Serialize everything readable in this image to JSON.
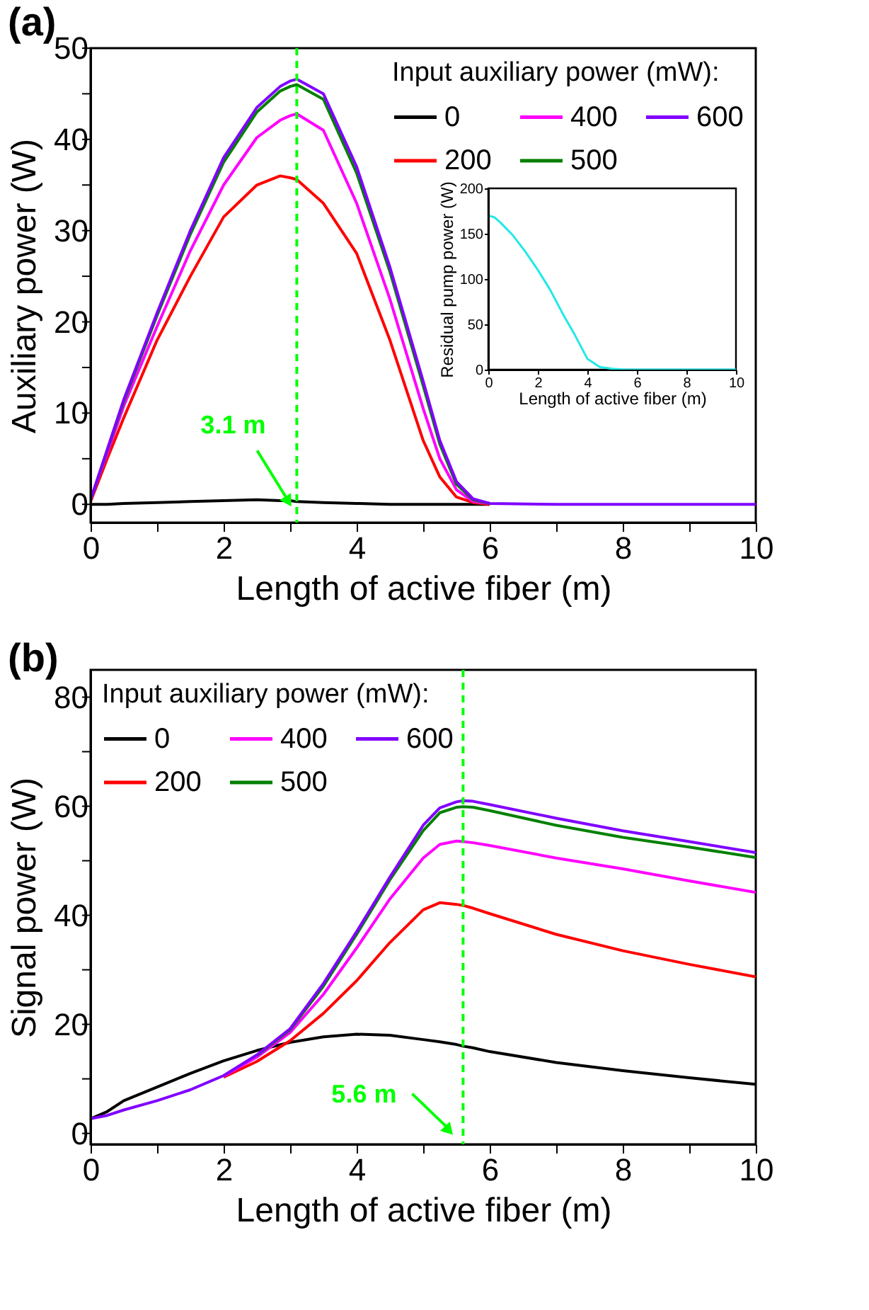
{
  "chart_data": [
    {
      "type": "line",
      "title": "(a)",
      "xlabel": "Length of active fiber (m)",
      "ylabel": "Auxiliary power (W)",
      "legend_title": "Input auxiliary power (mW):",
      "legend": "top right",
      "x": [
        0,
        0.25,
        0.5,
        1,
        1.5,
        2,
        2.5,
        2.85,
        3,
        3.1,
        3.5,
        4,
        4.5,
        5,
        5.25,
        5.5,
        5.75,
        6,
        7,
        8,
        9,
        10
      ],
      "series": [
        {
          "name": "0",
          "color": "#000000",
          "values": [
            0,
            0,
            0.1,
            0.2,
            0.3,
            0.4,
            0.5,
            0.4,
            0.4,
            0.3,
            0.2,
            0.1,
            0,
            0,
            0,
            0,
            0,
            0,
            null,
            null,
            null,
            null
          ]
        },
        {
          "name": "200",
          "color": "#ff0000",
          "values": [
            0.3,
            5,
            9.5,
            18,
            25,
            31.5,
            35,
            36,
            35.8,
            35.6,
            33,
            27.5,
            18,
            7,
            3,
            0.8,
            0.2,
            0,
            null,
            null,
            null,
            null
          ]
        },
        {
          "name": "400",
          "color": "#ff00ff",
          "values": [
            0.5,
            5.6,
            10.8,
            19.5,
            27.8,
            35,
            40.2,
            42.1,
            42.6,
            42.8,
            41,
            33,
            22.5,
            10.5,
            5,
            1.6,
            0.3,
            0.1,
            null,
            null,
            null,
            null
          ]
        },
        {
          "name": "500",
          "color": "#008000",
          "values": [
            0.5,
            5.9,
            11.3,
            20.7,
            29.6,
            37.5,
            43,
            45.3,
            45.8,
            46,
            44.4,
            36.3,
            25.5,
            13,
            6.6,
            2.2,
            0.5,
            0.1,
            null,
            null,
            null,
            null
          ]
        },
        {
          "name": "600",
          "color": "#8000ff",
          "values": [
            0.5,
            6,
            11.5,
            21,
            30,
            38,
            43.5,
            45.8,
            46.4,
            46.6,
            45,
            37,
            26,
            13.5,
            7,
            2.5,
            0.6,
            0.1,
            0,
            0,
            0,
            0
          ]
        }
      ],
      "xlim": [
        0,
        10
      ],
      "xticks": [
        0,
        {
          "value": 1,
          "label": null
        },
        2,
        {
          "value": 3,
          "label": null
        },
        4,
        {
          "value": 5,
          "label": null
        },
        6,
        {
          "value": 7,
          "label": null
        },
        8,
        {
          "value": 9,
          "label": null
        },
        10
      ],
      "ylim": [
        -2,
        50
      ],
      "yticks": [
        0,
        {
          "value": 5,
          "label": null
        },
        10,
        {
          "value": 15,
          "label": null
        },
        20,
        {
          "value": 25,
          "label": null
        },
        30,
        {
          "value": 35,
          "label": null
        },
        40,
        {
          "value": 45,
          "label": null
        },
        50
      ],
      "ref_lines": [
        {
          "axis": "x",
          "value": 3.1,
          "color": "#00ff00",
          "line_style": "dashed"
        }
      ],
      "annotations": [
        {
          "text": "3.1 m",
          "x": 3.1,
          "y": 0
        }
      ]
    },
    {
      "type": "line",
      "xlabel": "Length of active fiber (m)",
      "ylabel": "Residual pump power (W)",
      "x": [
        0,
        0.25,
        0.5,
        1,
        1.5,
        2,
        2.5,
        3,
        3.5,
        4,
        4.5,
        5,
        5.5,
        6,
        8,
        10
      ],
      "series": [
        {
          "color": "#22e8e8",
          "values": [
            170,
            168,
            162,
            148,
            130,
            110,
            88,
            62,
            38,
            12,
            3,
            1,
            0,
            0,
            0,
            0
          ]
        }
      ],
      "xlim": [
        0,
        10
      ],
      "xticks": [
        0,
        2,
        4,
        6,
        8,
        10
      ],
      "ylim": [
        0,
        200
      ],
      "yticks": [
        0,
        50,
        100,
        150,
        200
      ]
    },
    {
      "type": "line",
      "title": "(b)",
      "xlabel": "Length of active fiber (m)",
      "ylabel": "Signal power (W)",
      "legend_title": "Input auxiliary power (mW):",
      "legend": "top left",
      "x": [
        0,
        0.25,
        0.5,
        1,
        1.5,
        2,
        2.5,
        3,
        3.5,
        4,
        4.5,
        5,
        5.25,
        5.5,
        5.6,
        5.75,
        6,
        7,
        8,
        9,
        10
      ],
      "series": [
        {
          "name": "0",
          "color": "#000000",
          "values": [
            2.7,
            4,
            6,
            8.5,
            11,
            13.3,
            15.2,
            16.7,
            17.7,
            18.2,
            18,
            17.2,
            16.8,
            16.3,
            16,
            15.7,
            15,
            13,
            11.5,
            10.2,
            9
          ]
        },
        {
          "name": "200",
          "color": "#ff0000",
          "values": [
            null,
            null,
            null,
            null,
            null,
            10.3,
            13.2,
            17,
            22,
            28,
            35,
            41,
            42.3,
            42,
            41.8,
            41.3,
            40.3,
            36.5,
            33.5,
            31,
            28.7
          ]
        },
        {
          "name": "400",
          "color": "#ff00ff",
          "values": [
            null,
            null,
            null,
            null,
            null,
            10.5,
            14,
            18.5,
            25.5,
            34,
            43,
            50.5,
            53,
            53.6,
            53.5,
            53.3,
            52.8,
            50.5,
            48.5,
            46.3,
            44.2
          ]
        },
        {
          "name": "500",
          "color": "#008000",
          "values": [
            null,
            null,
            null,
            null,
            null,
            null,
            14.3,
            19,
            27,
            36.5,
            46.5,
            55.5,
            58.8,
            59.8,
            59.9,
            59.8,
            59.2,
            56.5,
            54.3,
            52.5,
            50.6
          ]
        },
        {
          "name": "600",
          "color": "#8000ff",
          "values": [
            2.7,
            3.3,
            4.3,
            6,
            8,
            10.6,
            14.4,
            19.2,
            27.5,
            37,
            47,
            56.5,
            59.7,
            60.8,
            61,
            60.9,
            60.3,
            57.8,
            55.5,
            53.5,
            51.5
          ]
        }
      ],
      "xlim": [
        0,
        10
      ],
      "xticks": [
        0,
        {
          "value": 1,
          "label": null
        },
        2,
        {
          "value": 3,
          "label": null
        },
        4,
        {
          "value": 5,
          "label": null
        },
        6,
        {
          "value": 7,
          "label": null
        },
        8,
        {
          "value": 9,
          "label": null
        },
        10
      ],
      "ylim": [
        -2,
        85
      ],
      "yticks": [
        0,
        {
          "value": 10,
          "label": null
        },
        20,
        {
          "value": 30,
          "label": null
        },
        40,
        {
          "value": 50,
          "label": null
        },
        60,
        {
          "value": 70,
          "label": null
        },
        80
      ],
      "ref_lines": [
        {
          "axis": "x",
          "value": 5.6,
          "color": "#00ff00",
          "line_style": "dashed"
        }
      ],
      "annotations": [
        {
          "text": "5.6 m",
          "x": 5.6,
          "y": 0
        }
      ]
    }
  ]
}
